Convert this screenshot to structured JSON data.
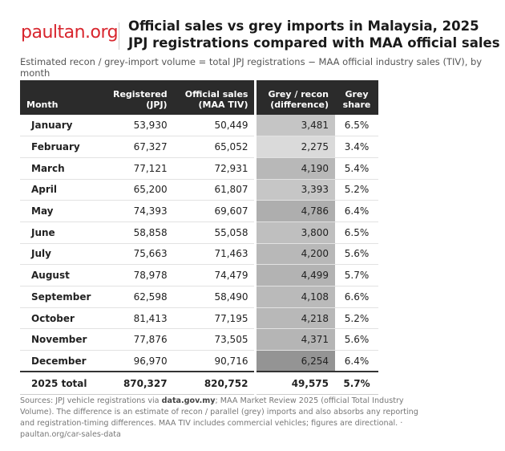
{
  "header": {
    "logo": "paultan.org",
    "title_lines": [
      "Official sales vs grey imports in Malaysia, 2025",
      "JPJ registrations compared with MAA official sales"
    ],
    "subtitle": "Estimated recon / grey-import volume = total JPJ registrations − MAA official industry sales (TIV), by month"
  },
  "table": {
    "columns": [
      "Month",
      "Registered\n(JPJ)",
      "Official sales\n(MAA TIV)",
      "Grey / recon\n(difference)",
      "Grey\nshare"
    ],
    "rows": [
      [
        "January",
        "53,930",
        "50,449",
        "3,481",
        "6.5%"
      ],
      [
        "February",
        "67,327",
        "65,052",
        "2,275",
        "3.4%"
      ],
      [
        "March",
        "77,121",
        "72,931",
        "4,190",
        "5.4%"
      ],
      [
        "April",
        "65,200",
        "61,807",
        "3,393",
        "5.2%"
      ],
      [
        "May",
        "74,393",
        "69,607",
        "4,786",
        "6.4%"
      ],
      [
        "June",
        "58,858",
        "55,058",
        "3,800",
        "6.5%"
      ],
      [
        "July",
        "75,663",
        "71,463",
        "4,200",
        "5.6%"
      ],
      [
        "August",
        "78,978",
        "74,479",
        "4,499",
        "5.7%"
      ],
      [
        "September",
        "62,598",
        "58,490",
        "4,108",
        "6.6%"
      ],
      [
        "October",
        "81,413",
        "77,195",
        "4,218",
        "5.2%"
      ],
      [
        "November",
        "77,876",
        "73,505",
        "4,371",
        "5.6%"
      ],
      [
        "December",
        "96,970",
        "90,716",
        "6,254",
        "6.4%"
      ]
    ],
    "total": [
      "2025 total",
      "870,327",
      "820,752",
      "49,575",
      "5.7%"
    ]
  },
  "footer": {
    "parts": [
      "Sources: JPJ vehicle registrations via ",
      "data.gov.my",
      "; MAA Market Review 2025 (official Total Industry Volume). The difference is an estimate of recon / parallel (grey) imports and also absorbs any reporting and registration-timing differences. MAA TIV includes commercial vehicles; figures are directional. · paultan.org/car-sales-data"
    ]
  }
}
